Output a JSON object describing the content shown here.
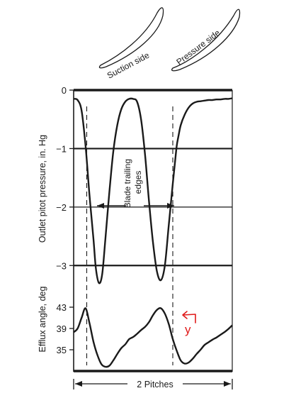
{
  "figure": {
    "blade_suction_label": "Suction side",
    "blade_pressure_label": "Pressure side",
    "trailing_edges_label_line1": "Blade trailing",
    "trailing_edges_label_line2": "edges",
    "span_label": "2 Pitches",
    "handwritten_mark": "y"
  },
  "chart_data": [
    {
      "type": "line",
      "title": "",
      "xlabel": "",
      "ylabel": "Outlet pitot pressure, in. Hg",
      "ylim": [
        -3.3,
        0
      ],
      "yticks": [
        0,
        -1,
        -2,
        -3
      ],
      "ytick_labels": [
        "0",
        "−1",
        "−2",
        "−3"
      ],
      "grid": "horizontal at each tick",
      "x_span": [
        0,
        2
      ],
      "x_unit": "pitch",
      "trailing_edges_x": [
        0.165,
        1.25
      ],
      "series": [
        {
          "name": "",
          "x": [
            0,
            0.05,
            0.1,
            0.15,
            0.2,
            0.25,
            0.28,
            0.32,
            0.36,
            0.4,
            0.45,
            0.5,
            0.55,
            0.6,
            0.65,
            0.7,
            0.75,
            0.8,
            0.85,
            0.9,
            0.95,
            1.0,
            1.05,
            1.1,
            1.15,
            1.2,
            1.25,
            1.28,
            1.3,
            1.32,
            1.35,
            1.4,
            1.45,
            1.5,
            1.55,
            1.6,
            1.65,
            1.7,
            1.75,
            1.8,
            1.85,
            1.9,
            1.95,
            2.0
          ],
          "values": [
            -0.15,
            -0.17,
            -0.35,
            -0.95,
            -1.8,
            -2.55,
            -3.05,
            -3.3,
            -3.15,
            -2.55,
            -1.75,
            -1.05,
            -0.6,
            -0.33,
            -0.2,
            -0.15,
            -0.15,
            -0.2,
            -0.5,
            -1.1,
            -1.9,
            -2.6,
            -3.1,
            -3.25,
            -3.0,
            -2.3,
            -1.6,
            -1.2,
            -0.95,
            -0.8,
            -0.6,
            -0.42,
            -0.3,
            -0.23,
            -0.2,
            -0.19,
            -0.18,
            -0.17,
            -0.17,
            -0.16,
            -0.16,
            -0.15,
            -0.15,
            -0.14
          ]
        }
      ]
    },
    {
      "type": "line",
      "title": "",
      "xlabel": "",
      "ylabel": "Efflux angle, deg",
      "ylim": [
        31,
        45
      ],
      "yticks": [
        43,
        39,
        35
      ],
      "ytick_labels": [
        "43",
        "39",
        "35"
      ],
      "grid": "off",
      "x_span": [
        0,
        2
      ],
      "x_unit": "pitch",
      "series": [
        {
          "name": "",
          "x": [
            0,
            0.05,
            0.1,
            0.15,
            0.2,
            0.25,
            0.3,
            0.35,
            0.4,
            0.45,
            0.5,
            0.55,
            0.6,
            0.65,
            0.7,
            0.75,
            0.8,
            0.85,
            0.9,
            0.95,
            1.0,
            1.05,
            1.1,
            1.15,
            1.2,
            1.25,
            1.3,
            1.35,
            1.4,
            1.45,
            1.5,
            1.55,
            1.6,
            1.65,
            1.7,
            1.75,
            1.8,
            1.85,
            1.9,
            1.95,
            2.0
          ],
          "values": [
            38.3,
            39.0,
            41.0,
            42.8,
            40.0,
            36.5,
            34.0,
            32.3,
            31.8,
            32.0,
            33.0,
            34.2,
            35.3,
            36.0,
            37.0,
            37.4,
            38.0,
            38.7,
            39.3,
            40.2,
            41.5,
            42.5,
            42.8,
            41.8,
            39.8,
            37.0,
            34.8,
            33.0,
            32.4,
            32.6,
            33.3,
            34.2,
            35.0,
            35.9,
            36.4,
            36.9,
            37.3,
            37.8,
            38.3,
            38.9,
            39.6
          ]
        }
      ]
    }
  ]
}
